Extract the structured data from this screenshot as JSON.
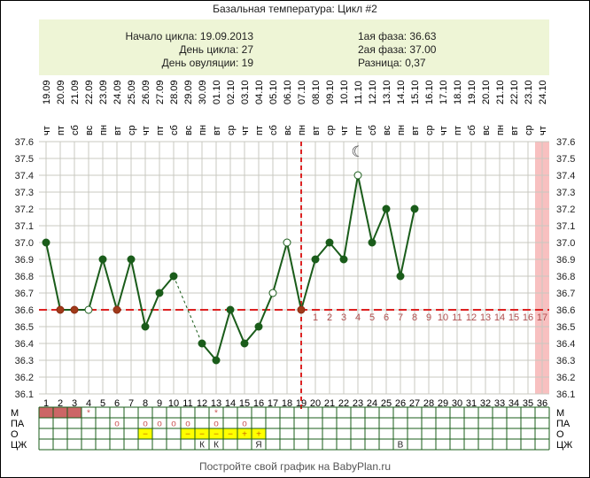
{
  "title": "Базальная температура: Цикл #2",
  "info": {
    "cycle_start": "Начало цикла: 19.09.2013",
    "cycle_day": "День цикла: 27",
    "ovulation_day": "День овуляции: 19",
    "phase1": "1ая фаза: 36.63",
    "phase2": "2ая фаза: 37.00",
    "difference": "Разница: 0,37"
  },
  "footer": "Постройте свой график на BabyPlan.ru",
  "colors": {
    "line": "#1a5c1a",
    "coverline": "#dd2222",
    "grid": "#c8c8c0",
    "pink": "#f8c0c0",
    "table": "#1a5c1a",
    "menses": "#cc6666",
    "yellow": "#ffff00",
    "postnum": "#b05050"
  },
  "chart_data": {
    "type": "line",
    "title": "Базальная температура: Цикл #2",
    "ylim": [
      36.1,
      37.6
    ],
    "yticks": [
      "37.6",
      "37.5",
      "37.4",
      "37.3",
      "37.2",
      "37.1",
      "37.0",
      "36.9",
      "36.8",
      "36.7",
      "36.6",
      "36.5",
      "36.4",
      "36.3",
      "36.2",
      "36.1"
    ],
    "days": [
      1,
      2,
      3,
      4,
      5,
      6,
      7,
      8,
      9,
      10,
      11,
      12,
      13,
      14,
      15,
      16,
      17,
      18,
      19,
      20,
      21,
      22,
      23,
      24,
      25,
      26,
      27,
      28,
      29,
      30,
      31,
      32,
      33,
      34,
      35,
      36
    ],
    "dates": [
      "19.09",
      "20.09",
      "21.09",
      "22.09",
      "23.09",
      "24.09",
      "25.09",
      "26.09",
      "27.09",
      "28.09",
      "29.09",
      "30.09",
      "01.10",
      "02.10",
      "03.10",
      "04.10",
      "05.10",
      "06.10",
      "07.10",
      "08.10",
      "09.10",
      "10.10",
      "11.10",
      "12.10",
      "13.10",
      "14.10",
      "15.10",
      "16.10",
      "17.10",
      "18.10",
      "19.10",
      "20.10",
      "21.10",
      "22.10",
      "23.10",
      "24.10"
    ],
    "weekdays": [
      "чт",
      "пт",
      "сб",
      "вс",
      "пн",
      "вт",
      "ср",
      "чт",
      "пт",
      "сб",
      "вс",
      "пн",
      "вт",
      "ср",
      "чт",
      "пт",
      "сб",
      "вс",
      "пн",
      "вт",
      "ср",
      "чт",
      "пт",
      "сб",
      "вс",
      "пн",
      "вт",
      "ср",
      "чт",
      "пт",
      "сб",
      "вс",
      "пн",
      "вт",
      "ср",
      "чт"
    ],
    "temperatures": [
      37.0,
      36.6,
      36.6,
      36.6,
      36.9,
      36.6,
      36.9,
      36.5,
      36.7,
      36.8,
      null,
      36.4,
      36.3,
      36.6,
      36.4,
      36.5,
      36.7,
      37.0,
      36.6,
      36.9,
      37.0,
      36.9,
      37.4,
      37.0,
      37.2,
      36.8,
      37.2
    ],
    "open_markers": [
      4,
      17,
      18,
      23
    ],
    "red_markers": [
      2,
      3,
      6,
      19
    ],
    "coverline": 36.6,
    "ovulation_day": 19,
    "post_ovulation_labels": [
      "1",
      "2",
      "3",
      "4",
      "5",
      "6",
      "7",
      "8",
      "9",
      "10",
      "11",
      "12",
      "13",
      "14",
      "15",
      "16",
      "17"
    ],
    "highlight_day": 36,
    "moon_day": 23,
    "table": {
      "row_labels": [
        "М",
        "ПА",
        "О",
        "ЦЖ"
      ],
      "menses_days": [
        1,
        2,
        3
      ],
      "menses_star_days": [
        4,
        13
      ],
      "star": "*",
      "pa_days": [
        6,
        8,
        9,
        10,
        11,
        13,
        15
      ],
      "pa_mark": "o",
      "o_marks": {
        "8": "−",
        "11": "−",
        "12": "−",
        "13": "−",
        "14": "−",
        "15": "+",
        "16": "+"
      },
      "cm_marks": {
        "12": "К",
        "13": "К",
        "16": "Я",
        "26": "В"
      }
    }
  }
}
